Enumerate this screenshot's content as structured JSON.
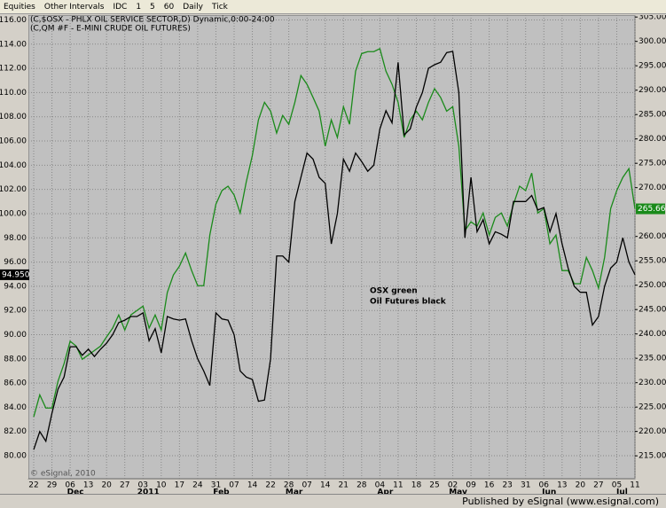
{
  "toolbar": {
    "items": [
      "Equities",
      "Other Intervals",
      "IDC",
      "1",
      "5",
      "60",
      "Daily",
      "Tick"
    ]
  },
  "footer": "Published by eSignal (www.esignal.com)",
  "chart_data": {
    "type": "line",
    "legend_lines": [
      "(C,$OSX - PHLX OIL SERVICE SECTOR,D) Dynamic,0:00-24:00",
      "(C,QM #F - E-MINI CRUDE OIL FUTURES)"
    ],
    "annotations": [
      "OSX green",
      "Oil Futures black"
    ],
    "watermark": "© eSignal, 2010",
    "categories": [
      "22",
      null,
      null,
      "29",
      null,
      null,
      "06",
      null,
      null,
      "13",
      null,
      null,
      "20",
      null,
      null,
      "27",
      null,
      null,
      "03",
      null,
      null,
      "10",
      null,
      null,
      "17",
      null,
      null,
      "24",
      null,
      null,
      "31",
      null,
      null,
      "07",
      null,
      null,
      "14",
      null,
      null,
      "22",
      null,
      null,
      "28",
      null,
      null,
      "07",
      null,
      null,
      "14",
      null,
      null,
      "21",
      null,
      null,
      "28",
      null,
      null,
      "04",
      null,
      null,
      "11",
      null,
      null,
      "18",
      null,
      null,
      "25",
      null,
      null,
      "02",
      null,
      null,
      "09",
      null,
      null,
      "16",
      null,
      null,
      "23",
      null,
      null,
      "31",
      null,
      null,
      "06",
      null,
      null,
      "13",
      null,
      null,
      "20",
      null,
      null,
      "27",
      null,
      null,
      "05",
      null,
      null,
      "11"
    ],
    "month_categories": [
      null,
      null,
      null,
      null,
      null,
      null,
      "Dec",
      null,
      null,
      null,
      null,
      null,
      null,
      null,
      null,
      null,
      null,
      null,
      "2011",
      null,
      null,
      null,
      null,
      null,
      null,
      null,
      null,
      null,
      null,
      null,
      "Feb",
      null,
      null,
      null,
      null,
      null,
      null,
      null,
      null,
      null,
      null,
      null,
      "Mar",
      null,
      null,
      null,
      null,
      null,
      null,
      null,
      null,
      null,
      null,
      null,
      null,
      null,
      null,
      "Apr",
      null,
      null,
      null,
      null,
      null,
      null,
      null,
      null,
      null,
      null,
      null,
      "May",
      null,
      null,
      null,
      null,
      null,
      null,
      null,
      null,
      null,
      null,
      null,
      null,
      null,
      null,
      "Jun",
      null,
      null,
      null,
      null,
      null,
      null,
      null,
      null,
      null,
      null,
      null,
      "Jul",
      null,
      null,
      null
    ],
    "ylim": [
      78.1,
      116.4
    ],
    "yticks": [
      {
        "value": 80,
        "label": "80.00"
      },
      {
        "value": 82,
        "label": "82.00"
      },
      {
        "value": 84,
        "label": "84.00"
      },
      {
        "value": 86,
        "label": "86.00"
      },
      {
        "value": 88,
        "label": "88.00"
      },
      {
        "value": 90,
        "label": "90.00"
      },
      {
        "value": 92,
        "label": "92.00"
      },
      {
        "value": 94,
        "label": "94.00"
      },
      {
        "value": 96,
        "label": "96.00"
      },
      {
        "value": 98,
        "label": "98.00"
      },
      {
        "value": 100,
        "label": "100.00"
      },
      {
        "value": 102,
        "label": "102.00"
      },
      {
        "value": 104,
        "label": "104.00"
      },
      {
        "value": 106,
        "label": "106.00"
      },
      {
        "value": 108,
        "label": "108.00"
      },
      {
        "value": 110,
        "label": "110.00"
      },
      {
        "value": 112,
        "label": "112.00"
      },
      {
        "value": 114,
        "label": "114.00"
      },
      {
        "value": 116,
        "label": "116.00"
      }
    ],
    "y2lim": [
      210.3,
      305.4
    ],
    "y2ticks": [
      {
        "value": 215,
        "label": "215.00"
      },
      {
        "value": 220,
        "label": "220.00"
      },
      {
        "value": 225,
        "label": "225.00"
      },
      {
        "value": 230,
        "label": "230.00"
      },
      {
        "value": 235,
        "label": "235.00"
      },
      {
        "value": 240,
        "label": "240.00"
      },
      {
        "value": 245,
        "label": "245.00"
      },
      {
        "value": 250,
        "label": "250.00"
      },
      {
        "value": 255,
        "label": "255.00"
      },
      {
        "value": 260,
        "label": "260.00"
      },
      {
        "value": 270,
        "label": "270.00"
      },
      {
        "value": 275,
        "label": "275.00"
      },
      {
        "value": 280,
        "label": "280.00"
      },
      {
        "value": 285,
        "label": "285.00"
      },
      {
        "value": 290,
        "label": "290.00"
      },
      {
        "value": 295,
        "label": "295.00"
      },
      {
        "value": 300,
        "label": "300.00"
      },
      {
        "value": 305,
        "label": "305.00"
      }
    ],
    "grid": true,
    "series": [
      {
        "name": "OSX",
        "color": "#1a8a1a",
        "axis": "y2",
        "last_label": "265.66",
        "values": [
          223,
          227.5,
          224.8,
          224.8,
          230.3,
          233.9,
          238.5,
          237.5,
          234.8,
          235.7,
          236.6,
          237.5,
          239.4,
          241.2,
          243.9,
          240.8,
          243.9,
          244.8,
          245.7,
          241.2,
          243.9,
          240.8,
          248.5,
          252.1,
          253.9,
          256.6,
          253,
          249.9,
          249.9,
          260.3,
          266.6,
          269.4,
          270.3,
          268.5,
          264.8,
          271.2,
          276.6,
          283.9,
          287.5,
          285.7,
          281.2,
          284.8,
          283,
          287.5,
          293,
          291.2,
          288.5,
          285.7,
          278.5,
          283.9,
          280.3,
          286.6,
          283,
          293.9,
          297.5,
          297.9,
          297.9,
          298.5,
          293.9,
          291.2,
          287.5,
          280.3,
          283.9,
          285.7,
          283.9,
          287.5,
          290.3,
          288.5,
          285.7,
          286.6,
          278.5,
          261.2,
          263,
          262.1,
          264.8,
          260.3,
          263.9,
          264.8,
          262.1,
          266.6,
          270.3,
          269.4,
          273,
          264.8,
          265.7,
          258.5,
          260.3,
          253,
          253,
          250.3,
          250.3,
          255.7,
          253,
          249.4,
          255.7,
          265.7,
          269.4,
          272.1,
          273.9,
          265.66
        ]
      },
      {
        "name": "Oil Futures",
        "color": "#000000",
        "last_label": "94.950",
        "values": [
          80.5,
          82,
          81.2,
          83.5,
          85.5,
          86.5,
          89,
          89,
          88.3,
          88.8,
          88.2,
          88.8,
          89.3,
          90,
          91,
          91.2,
          91.5,
          91.5,
          91.8,
          89.5,
          90.5,
          88.5,
          91.5,
          91.3,
          91.2,
          91.3,
          89.5,
          88,
          87,
          85.8,
          91.8,
          91.3,
          91.2,
          90,
          87,
          86.5,
          86.3,
          84.5,
          84.6,
          88,
          96.5,
          96.5,
          96,
          101,
          103,
          105,
          104.5,
          103,
          102.5,
          97.5,
          100,
          104.5,
          103.5,
          105,
          104.3,
          103.5,
          104,
          107,
          108.5,
          107.5,
          112.5,
          106.5,
          107,
          108.8,
          110,
          112,
          112.3,
          112.5,
          113.3,
          113.4,
          110,
          98,
          103,
          98.5,
          99.5,
          97.5,
          98.5,
          98.3,
          98,
          101,
          101,
          101,
          101.5,
          100.3,
          100.5,
          98.5,
          100,
          97.5,
          95.5,
          94,
          93.5,
          93.5,
          90.8,
          91.5,
          94,
          95.5,
          96,
          98,
          96,
          94.95
        ]
      }
    ]
  }
}
